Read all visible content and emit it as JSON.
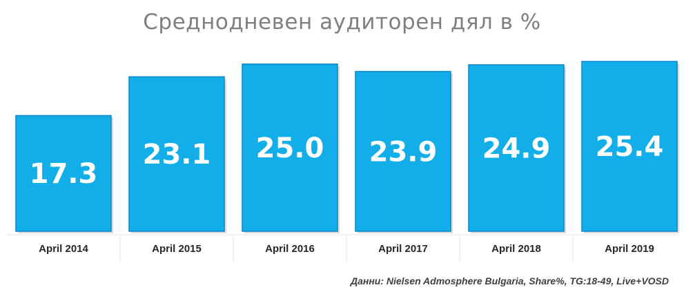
{
  "title": "Среднодневен аудиторен дял в %",
  "source": "Данни: Nielsen Admosphere Bulgaria, Share%, TG:18-49, Live+VOSD",
  "colors": {
    "bar": "#12aee9",
    "bar_edge": "#0a86c8",
    "value_label": "#ffffff",
    "tick_label": "#262626",
    "title": "#7f7f7f"
  },
  "chart_data": {
    "type": "bar",
    "title": "Среднодневен аудиторен дял в %",
    "categories": [
      "April 2014",
      "April 2015",
      "April 2016",
      "April 2017",
      "April 2018",
      "April 2019"
    ],
    "values": [
      17.3,
      23.1,
      25.0,
      23.9,
      24.9,
      25.4
    ],
    "value_labels": [
      "17.3",
      "23.1",
      "25.0",
      "23.9",
      "24.9",
      "25.4"
    ],
    "ylim": [
      0,
      25.4
    ],
    "grid": false,
    "legend": "none"
  }
}
